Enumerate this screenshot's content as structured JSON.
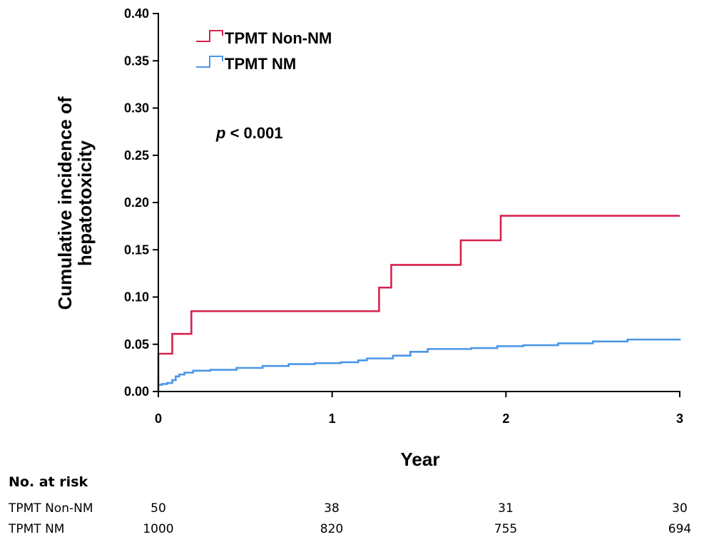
{
  "chart_data": {
    "type": "line",
    "step": true,
    "title": "",
    "xlabel": "Year",
    "ylabel_lines": [
      "Cumulative incidence of",
      "hepatotoxicity"
    ],
    "xlim": [
      0,
      3
    ],
    "ylim": [
      0,
      0.4
    ],
    "x_ticks": [
      0,
      1,
      2,
      3
    ],
    "x_tick_labels": [
      "0",
      "1",
      "2",
      "3"
    ],
    "y_ticks": [
      0,
      0.05,
      0.1,
      0.15,
      0.2,
      0.25,
      0.3,
      0.35,
      0.4
    ],
    "y_tick_labels": [
      "0.00",
      "0.05",
      "0.10",
      "0.15",
      "0.20",
      "0.25",
      "0.30",
      "0.35",
      "0.40"
    ],
    "grid": false,
    "legend_position": "top-left",
    "annotation": {
      "italic": "p",
      "text": " < 0.001"
    },
    "series": [
      {
        "name": "TPMT Non-NM",
        "color": "#d6224d",
        "x": [
          0,
          0.08,
          0.19,
          1.27,
          1.34,
          1.74,
          1.97,
          3.0
        ],
        "y": [
          0.04,
          0.061,
          0.085,
          0.11,
          0.134,
          0.16,
          0.186,
          0.186
        ]
      },
      {
        "name": "TPMT NM",
        "color": "#4b96e6",
        "x": [
          0,
          0.02,
          0.05,
          0.08,
          0.1,
          0.12,
          0.15,
          0.2,
          0.3,
          0.45,
          0.6,
          0.75,
          0.9,
          1.05,
          1.15,
          1.2,
          1.35,
          1.45,
          1.55,
          1.8,
          1.95,
          2.1,
          2.3,
          2.5,
          2.7,
          3.0
        ],
        "y": [
          0.007,
          0.008,
          0.009,
          0.012,
          0.016,
          0.018,
          0.02,
          0.022,
          0.023,
          0.025,
          0.027,
          0.029,
          0.03,
          0.031,
          0.033,
          0.035,
          0.038,
          0.042,
          0.045,
          0.046,
          0.048,
          0.049,
          0.051,
          0.053,
          0.055,
          0.056
        ]
      }
    ]
  },
  "risk_table": {
    "header": "No. at risk",
    "rows": [
      {
        "label": "TPMT Non-NM",
        "values": [
          "50",
          "38",
          "31",
          "30"
        ]
      },
      {
        "label": "TPMT NM",
        "values": [
          "1000",
          "820",
          "755",
          "694"
        ]
      }
    ]
  }
}
